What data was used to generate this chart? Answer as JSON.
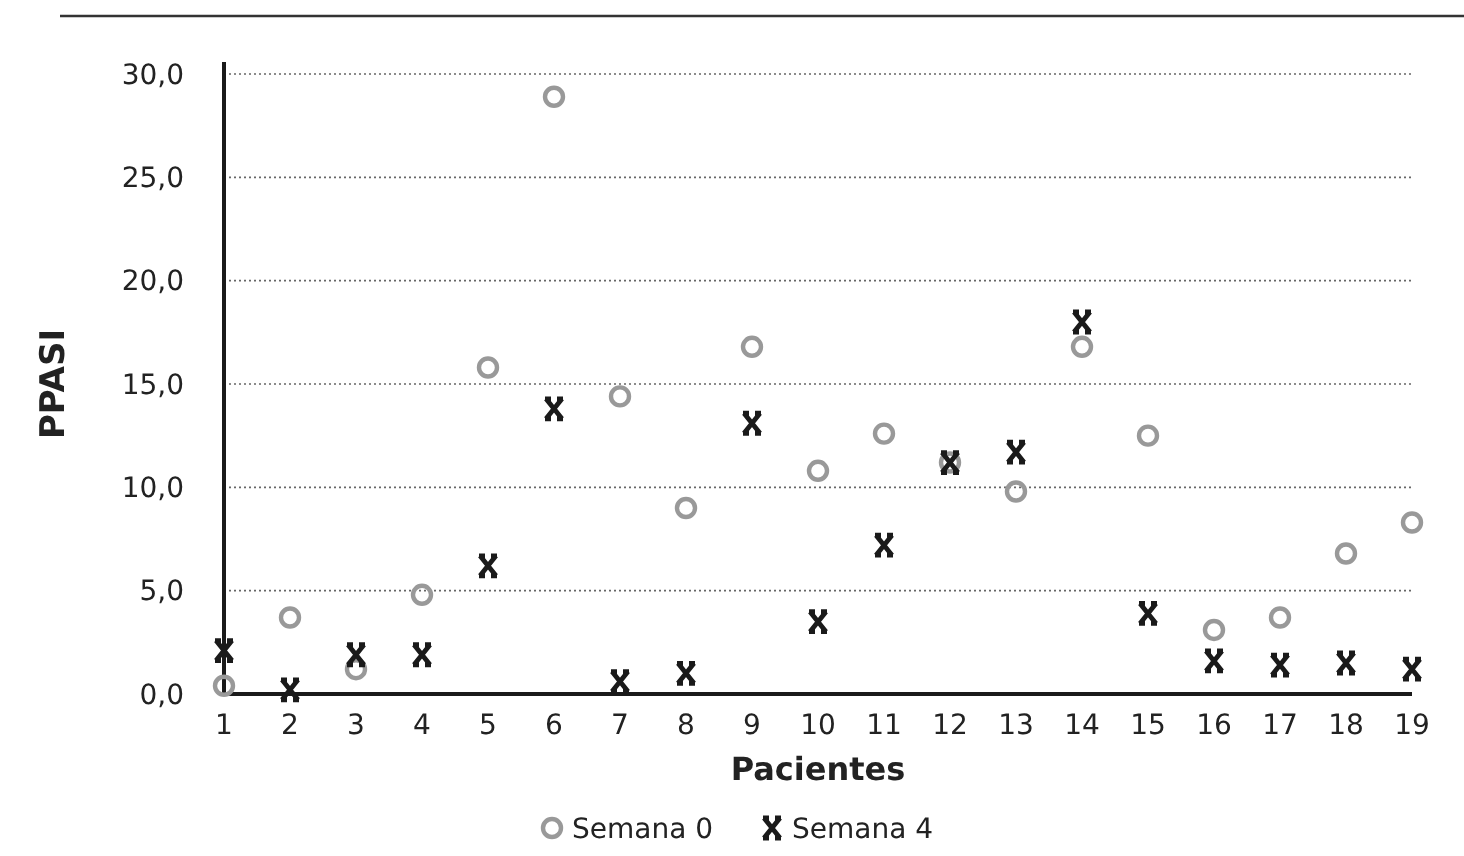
{
  "chart_data": {
    "type": "scatter",
    "xlabel": "Pacientes",
    "ylabel": "PPASI",
    "x": [
      1,
      2,
      3,
      4,
      5,
      6,
      7,
      8,
      9,
      10,
      11,
      12,
      13,
      14,
      15,
      16,
      17,
      18,
      19
    ],
    "xlim": [
      1,
      19
    ],
    "xticks": [
      1,
      2,
      3,
      4,
      5,
      6,
      7,
      8,
      9,
      10,
      11,
      12,
      13,
      14,
      15,
      16,
      17,
      18,
      19
    ],
    "ylim": [
      0,
      30
    ],
    "yticks": [
      {
        "value": 0,
        "label": "0,0"
      },
      {
        "value": 5,
        "label": "5,0"
      },
      {
        "value": 10,
        "label": "10,0"
      },
      {
        "value": 15,
        "label": "15,0"
      },
      {
        "value": 20,
        "label": "20,0"
      },
      {
        "value": 25,
        "label": "25,0"
      },
      {
        "value": 30,
        "label": "30,0"
      }
    ],
    "grid": "y",
    "legend": "bottom",
    "series": [
      {
        "name": "Semana 0",
        "color": "#999999",
        "marker": "circle",
        "values": [
          0.4,
          3.7,
          1.2,
          4.8,
          15.8,
          28.9,
          14.4,
          9.0,
          16.8,
          10.8,
          12.6,
          11.2,
          9.8,
          16.8,
          12.5,
          3.1,
          3.7,
          6.8,
          8.3
        ]
      },
      {
        "name": "Semana 4",
        "color": "#1a1a1a",
        "marker": "cross",
        "values": [
          2.1,
          0.2,
          1.9,
          1.9,
          6.2,
          13.8,
          0.6,
          1.0,
          13.1,
          3.5,
          7.2,
          11.2,
          11.7,
          18.0,
          3.9,
          1.6,
          1.4,
          1.5,
          1.2
        ]
      }
    ]
  }
}
